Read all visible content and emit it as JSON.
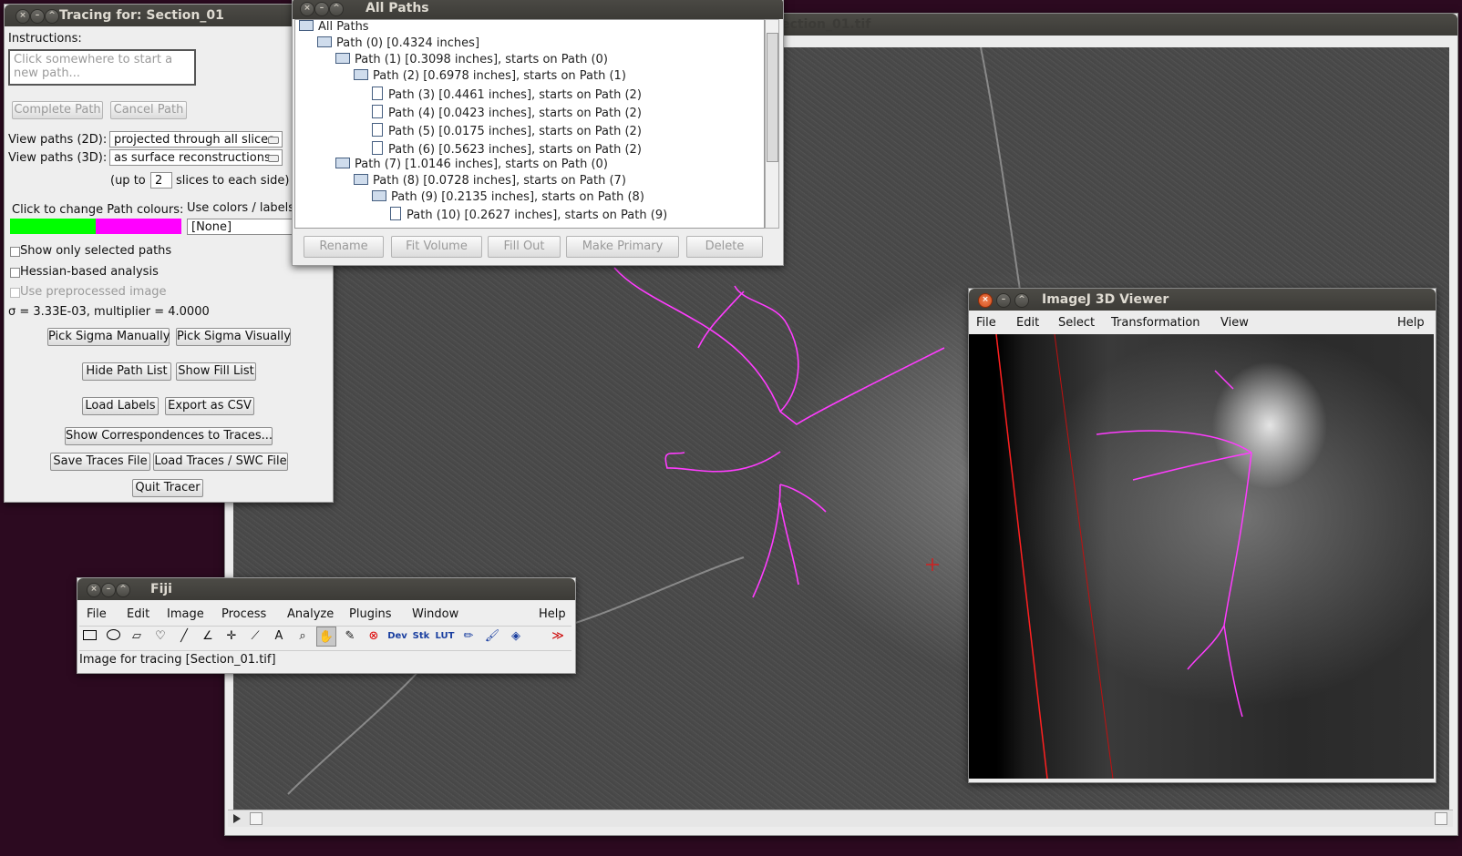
{
  "main_image": {
    "title": "Section_01.tif"
  },
  "tracing": {
    "title": "Tracing for: Section_01",
    "instructions_label": "Instructions:",
    "instructions_text": "Click somewhere to start a new path...",
    "complete_path": "Complete Path",
    "cancel_path": "Cancel Path",
    "view2d_label": "View paths (2D):",
    "view2d_value": "projected through all slices",
    "view3d_label": "View paths (3D):",
    "view3d_value": "as surface reconstructions",
    "upto_prefix": "(up to",
    "upto_value": "2",
    "upto_suffix": "slices to each side)",
    "colours_label": "Click to change Path colours:",
    "use_colors_label": "Use colors / labels",
    "colour_selected": "#00ff00",
    "colour_unselected": "#ff00ff",
    "labels_value": "[None]",
    "show_only_selected": "Show only selected paths",
    "hessian": "Hessian-based analysis",
    "preprocessed": "Use preprocessed image",
    "sigma_text": "σ = 3.33E-03, multiplier = 4.0000",
    "pick_sigma_manually": "Pick Sigma Manually",
    "pick_sigma_visually": "Pick Sigma Visually",
    "hide_path_list": "Hide Path List",
    "show_fill_list": "Show Fill List",
    "load_labels": "Load Labels",
    "export_csv": "Export as CSV",
    "show_correspondences": "Show Correspondences to Traces...",
    "save_traces": "Save Traces File",
    "load_traces": "Load Traces / SWC File",
    "quit_tracer": "Quit Tracer"
  },
  "paths": {
    "title": "All Paths",
    "root": "All Paths",
    "rows": [
      "Path (0) [0.4324 inches]",
      "Path (1) [0.3098 inches], starts on Path (0)",
      "Path (2) [0.6978 inches], starts on Path (1)",
      "Path (3) [0.4461 inches], starts on Path (2)",
      "Path (4) [0.0423 inches], starts on Path (2)",
      "Path (5) [0.0175 inches], starts on Path (2)",
      "Path (6) [0.5623 inches], starts on Path (2)",
      "Path (7) [1.0146 inches], starts on Path (0)",
      "Path (8) [0.0728 inches], starts on Path (7)",
      "Path (9) [0.2135 inches], starts on Path (8)",
      "Path (10) [0.2627 inches], starts on Path (9)"
    ],
    "rename": "Rename",
    "fit_volume": "Fit Volume",
    "fill_out": "Fill Out",
    "make_primary": "Make Primary",
    "delete": "Delete"
  },
  "fiji": {
    "title": "Fiji",
    "menu": [
      "File",
      "Edit",
      "Image",
      "Process",
      "Analyze",
      "Plugins",
      "Window",
      "Help"
    ],
    "status": "Image for tracing [Section_01.tif]",
    "tool_dev": "Dev",
    "tool_stk": "Stk",
    "tool_lut": "LUT",
    "tool_text": "A"
  },
  "viewer3d": {
    "title": "ImageJ 3D Viewer",
    "menu": [
      "File",
      "Edit",
      "Select",
      "Transformation",
      "View",
      "Help"
    ]
  }
}
